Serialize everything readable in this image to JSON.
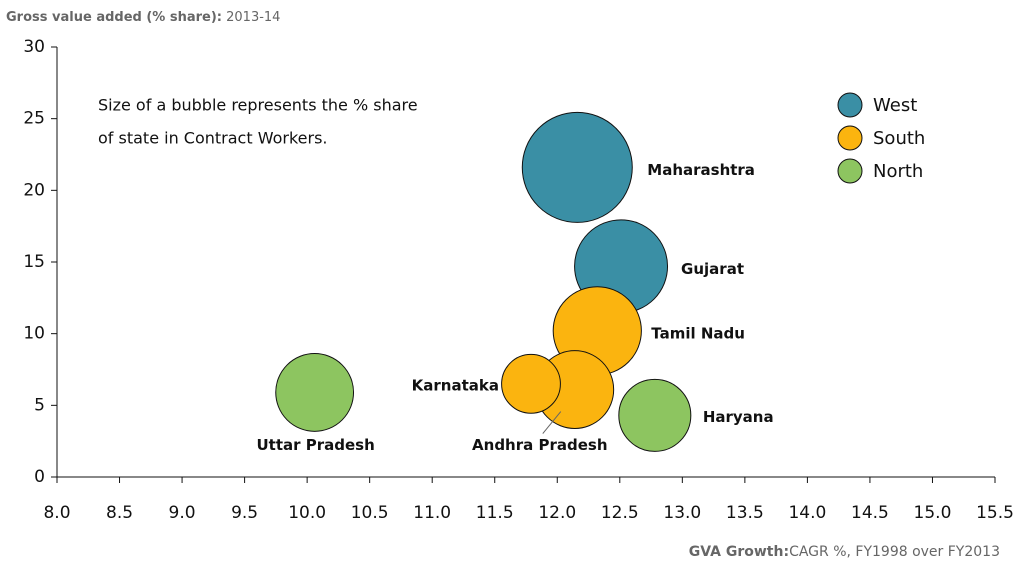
{
  "chart_data": {
    "type": "bubble",
    "title": "Gross value added (% share):",
    "subtitle": "2013-14",
    "x_label_bold": "GVA Growth:",
    "x_label": "CAGR %, FY1998 over FY2013",
    "annotation": [
      "Size of a bubble represents the % share",
      "of state in Contract Workers."
    ],
    "xlim": [
      8,
      15.5
    ],
    "ylim": [
      0,
      30
    ],
    "xticks": [
      {
        "value": 8,
        "label": "8.0"
      },
      {
        "value": 8.5,
        "label": "8.5"
      },
      {
        "value": 9,
        "label": "9.0"
      },
      {
        "value": 9.5,
        "label": "9.5"
      },
      {
        "value": 10,
        "label": "10.0"
      },
      {
        "value": 10.5,
        "label": "10.5"
      },
      {
        "value": 11,
        "label": "11.0"
      },
      {
        "value": 11.5,
        "label": "11.5"
      },
      {
        "value": 12,
        "label": "12.0"
      },
      {
        "value": 12.5,
        "label": "12.5"
      },
      {
        "value": 13,
        "label": "13.0"
      },
      {
        "value": 13.5,
        "label": "13.5"
      },
      {
        "value": 14,
        "label": "14.0"
      },
      {
        "value": 14.5,
        "label": "14.5"
      },
      {
        "value": 15,
        "label": "15.0"
      },
      {
        "value": 15.5,
        "label": "15.5"
      }
    ],
    "yticks": [
      0,
      5,
      10,
      15,
      20,
      25,
      30
    ],
    "series": [
      {
        "name": "West",
        "color": "#3a8fa5",
        "labels": [
          "Maharashtra",
          "Gujarat"
        ],
        "x": [
          12.16,
          12.51
        ],
        "y": [
          21.6,
          14.7
        ],
        "size": [
          14,
          10
        ]
      },
      {
        "name": "South",
        "color": "#fbb40f",
        "labels": [
          "Tamil Nadu",
          "Andhra Pradesh",
          "Karnataka"
        ],
        "x": [
          12.32,
          12.14,
          11.79
        ],
        "y": [
          10.2,
          6.1,
          6.5
        ],
        "size": [
          9,
          7,
          4
        ]
      },
      {
        "name": "North",
        "color": "#8dc560",
        "labels": [
          "Haryana",
          "Uttar Pradesh"
        ],
        "x": [
          12.78,
          10.06
        ],
        "y": [
          4.3,
          5.9
        ],
        "size": [
          6,
          7
        ]
      }
    ]
  }
}
